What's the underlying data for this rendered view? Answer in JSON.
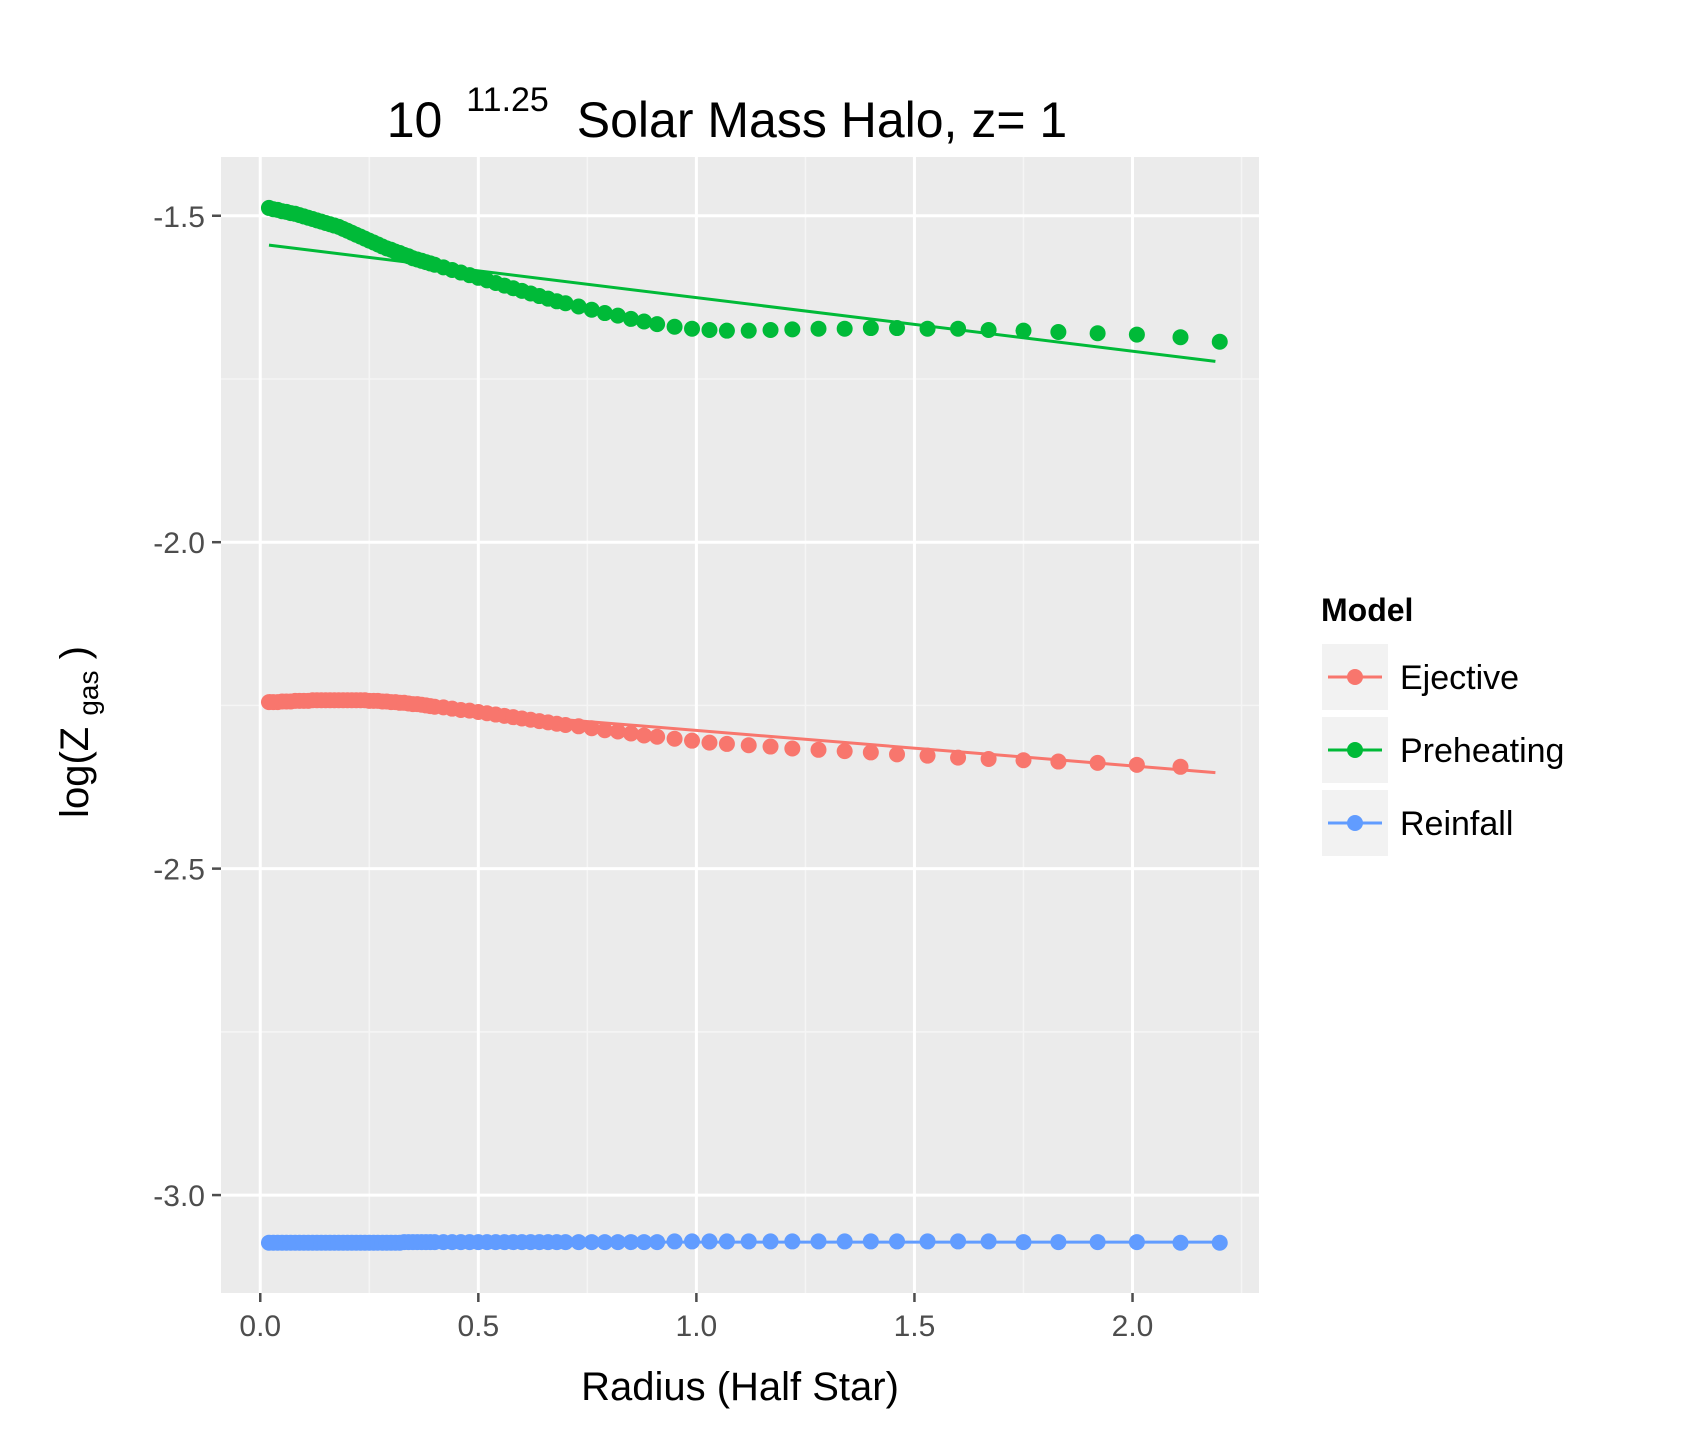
{
  "chart_data": {
    "type": "scatter",
    "title": {
      "base": "10",
      "exponent": "11.25",
      "rest": "Solar Mass Halo, z= 1"
    },
    "xlabel": "Radius (Half Star)",
    "ylabel": {
      "prefix": "log(Z",
      "subscript": "gas",
      "suffix": ")"
    },
    "xlim": [
      -0.09,
      2.29
    ],
    "ylim": [
      -3.15,
      -1.41
    ],
    "x_ticks": [
      0.0,
      0.5,
      1.0,
      1.5,
      2.0
    ],
    "x_tick_labels": [
      "0.0",
      "0.5",
      "1.0",
      "1.5",
      "2.0"
    ],
    "y_ticks": [
      -1.5,
      -2.0,
      -2.5,
      -3.0
    ],
    "y_tick_labels": [
      "-1.5",
      "-2.0",
      "-2.5",
      "-3.0"
    ],
    "grid": true,
    "legend": {
      "title": "Model",
      "position": "right"
    },
    "series": [
      {
        "name": "Ejective",
        "color": "#F8766D",
        "points": [
          [
            0.02,
            -2.245
          ],
          [
            0.03,
            -2.245
          ],
          [
            0.04,
            -2.245
          ],
          [
            0.05,
            -2.244
          ],
          [
            0.06,
            -2.244
          ],
          [
            0.07,
            -2.244
          ],
          [
            0.08,
            -2.243
          ],
          [
            0.09,
            -2.243
          ],
          [
            0.1,
            -2.243
          ],
          [
            0.11,
            -2.243
          ],
          [
            0.12,
            -2.242
          ],
          [
            0.13,
            -2.242
          ],
          [
            0.14,
            -2.242
          ],
          [
            0.15,
            -2.242
          ],
          [
            0.16,
            -2.242
          ],
          [
            0.17,
            -2.242
          ],
          [
            0.18,
            -2.242
          ],
          [
            0.19,
            -2.242
          ],
          [
            0.2,
            -2.242
          ],
          [
            0.21,
            -2.242
          ],
          [
            0.22,
            -2.242
          ],
          [
            0.23,
            -2.242
          ],
          [
            0.24,
            -2.242
          ],
          [
            0.25,
            -2.243
          ],
          [
            0.26,
            -2.243
          ],
          [
            0.27,
            -2.243
          ],
          [
            0.28,
            -2.244
          ],
          [
            0.29,
            -2.244
          ],
          [
            0.3,
            -2.245
          ],
          [
            0.31,
            -2.245
          ],
          [
            0.32,
            -2.246
          ],
          [
            0.33,
            -2.246
          ],
          [
            0.34,
            -2.247
          ],
          [
            0.35,
            -2.248
          ],
          [
            0.36,
            -2.248
          ],
          [
            0.37,
            -2.249
          ],
          [
            0.38,
            -2.25
          ],
          [
            0.39,
            -2.251
          ],
          [
            0.4,
            -2.252
          ],
          [
            0.42,
            -2.253
          ],
          [
            0.44,
            -2.255
          ],
          [
            0.46,
            -2.257
          ],
          [
            0.48,
            -2.258
          ],
          [
            0.5,
            -2.26
          ],
          [
            0.52,
            -2.262
          ],
          [
            0.54,
            -2.264
          ],
          [
            0.56,
            -2.266
          ],
          [
            0.58,
            -2.268
          ],
          [
            0.6,
            -2.27
          ],
          [
            0.62,
            -2.272
          ],
          [
            0.64,
            -2.274
          ],
          [
            0.66,
            -2.276
          ],
          [
            0.68,
            -2.278
          ],
          [
            0.7,
            -2.28
          ],
          [
            0.73,
            -2.282
          ],
          [
            0.76,
            -2.285
          ],
          [
            0.79,
            -2.288
          ],
          [
            0.82,
            -2.29
          ],
          [
            0.85,
            -2.293
          ],
          [
            0.88,
            -2.296
          ],
          [
            0.91,
            -2.298
          ],
          [
            0.95,
            -2.301
          ],
          [
            0.99,
            -2.304
          ],
          [
            1.03,
            -2.307
          ],
          [
            1.07,
            -2.309
          ],
          [
            1.12,
            -2.311
          ],
          [
            1.17,
            -2.313
          ],
          [
            1.22,
            -2.316
          ],
          [
            1.28,
            -2.318
          ],
          [
            1.34,
            -2.32
          ],
          [
            1.4,
            -2.322
          ],
          [
            1.46,
            -2.325
          ],
          [
            1.53,
            -2.327
          ],
          [
            1.6,
            -2.33
          ],
          [
            1.67,
            -2.332
          ],
          [
            1.75,
            -2.334
          ],
          [
            1.83,
            -2.336
          ],
          [
            1.92,
            -2.338
          ],
          [
            2.01,
            -2.341
          ],
          [
            2.11,
            -2.344
          ]
        ],
        "fit": [
          [
            0.02,
            -2.235
          ],
          [
            2.19,
            -2.353
          ]
        ]
      },
      {
        "name": "Preheating",
        "color": "#00BA38",
        "points": [
          [
            0.02,
            -1.488
          ],
          [
            0.03,
            -1.49
          ],
          [
            0.04,
            -1.491
          ],
          [
            0.05,
            -1.493
          ],
          [
            0.06,
            -1.494
          ],
          [
            0.07,
            -1.496
          ],
          [
            0.08,
            -1.497
          ],
          [
            0.09,
            -1.499
          ],
          [
            0.1,
            -1.501
          ],
          [
            0.11,
            -1.503
          ],
          [
            0.12,
            -1.505
          ],
          [
            0.13,
            -1.507
          ],
          [
            0.14,
            -1.509
          ],
          [
            0.15,
            -1.511
          ],
          [
            0.16,
            -1.513
          ],
          [
            0.17,
            -1.515
          ],
          [
            0.18,
            -1.517
          ],
          [
            0.19,
            -1.52
          ],
          [
            0.2,
            -1.523
          ],
          [
            0.21,
            -1.526
          ],
          [
            0.22,
            -1.529
          ],
          [
            0.23,
            -1.532
          ],
          [
            0.24,
            -1.535
          ],
          [
            0.25,
            -1.538
          ],
          [
            0.26,
            -1.541
          ],
          [
            0.27,
            -1.544
          ],
          [
            0.28,
            -1.547
          ],
          [
            0.29,
            -1.55
          ],
          [
            0.3,
            -1.552
          ],
          [
            0.31,
            -1.555
          ],
          [
            0.32,
            -1.557
          ],
          [
            0.33,
            -1.56
          ],
          [
            0.34,
            -1.562
          ],
          [
            0.35,
            -1.565
          ],
          [
            0.36,
            -1.567
          ],
          [
            0.37,
            -1.569
          ],
          [
            0.38,
            -1.571
          ],
          [
            0.39,
            -1.573
          ],
          [
            0.4,
            -1.575
          ],
          [
            0.42,
            -1.579
          ],
          [
            0.44,
            -1.583
          ],
          [
            0.46,
            -1.587
          ],
          [
            0.48,
            -1.591
          ],
          [
            0.5,
            -1.595
          ],
          [
            0.52,
            -1.599
          ],
          [
            0.54,
            -1.603
          ],
          [
            0.56,
            -1.607
          ],
          [
            0.58,
            -1.611
          ],
          [
            0.6,
            -1.615
          ],
          [
            0.62,
            -1.619
          ],
          [
            0.64,
            -1.623
          ],
          [
            0.66,
            -1.627
          ],
          [
            0.68,
            -1.631
          ],
          [
            0.7,
            -1.634
          ],
          [
            0.73,
            -1.639
          ],
          [
            0.76,
            -1.644
          ],
          [
            0.79,
            -1.649
          ],
          [
            0.82,
            -1.653
          ],
          [
            0.85,
            -1.658
          ],
          [
            0.88,
            -1.662
          ],
          [
            0.91,
            -1.666
          ],
          [
            0.95,
            -1.67
          ],
          [
            0.99,
            -1.673
          ],
          [
            1.03,
            -1.675
          ],
          [
            1.07,
            -1.676
          ],
          [
            1.12,
            -1.676
          ],
          [
            1.17,
            -1.675
          ],
          [
            1.22,
            -1.674
          ],
          [
            1.28,
            -1.673
          ],
          [
            1.34,
            -1.673
          ],
          [
            1.4,
            -1.672
          ],
          [
            1.46,
            -1.672
          ],
          [
            1.53,
            -1.673
          ],
          [
            1.6,
            -1.673
          ],
          [
            1.67,
            -1.675
          ],
          [
            1.75,
            -1.676
          ],
          [
            1.83,
            -1.678
          ],
          [
            1.92,
            -1.68
          ],
          [
            2.01,
            -1.682
          ],
          [
            2.11,
            -1.686
          ],
          [
            2.2,
            -1.693
          ]
        ],
        "fit": [
          [
            0.02,
            -1.545
          ],
          [
            2.19,
            -1.723
          ]
        ]
      },
      {
        "name": "Reinfall",
        "color": "#619CFF",
        "points": [
          [
            0.02,
            -3.073
          ],
          [
            0.03,
            -3.073
          ],
          [
            0.04,
            -3.073
          ],
          [
            0.05,
            -3.073
          ],
          [
            0.06,
            -3.073
          ],
          [
            0.07,
            -3.073
          ],
          [
            0.08,
            -3.073
          ],
          [
            0.09,
            -3.073
          ],
          [
            0.1,
            -3.073
          ],
          [
            0.11,
            -3.073
          ],
          [
            0.12,
            -3.073
          ],
          [
            0.13,
            -3.073
          ],
          [
            0.14,
            -3.073
          ],
          [
            0.15,
            -3.073
          ],
          [
            0.16,
            -3.073
          ],
          [
            0.17,
            -3.073
          ],
          [
            0.18,
            -3.073
          ],
          [
            0.19,
            -3.073
          ],
          [
            0.2,
            -3.073
          ],
          [
            0.21,
            -3.073
          ],
          [
            0.22,
            -3.073
          ],
          [
            0.23,
            -3.073
          ],
          [
            0.24,
            -3.073
          ],
          [
            0.25,
            -3.073
          ],
          [
            0.26,
            -3.073
          ],
          [
            0.27,
            -3.073
          ],
          [
            0.28,
            -3.073
          ],
          [
            0.29,
            -3.073
          ],
          [
            0.3,
            -3.073
          ],
          [
            0.31,
            -3.073
          ],
          [
            0.32,
            -3.073
          ],
          [
            0.33,
            -3.072
          ],
          [
            0.34,
            -3.072
          ],
          [
            0.35,
            -3.072
          ],
          [
            0.36,
            -3.072
          ],
          [
            0.37,
            -3.072
          ],
          [
            0.38,
            -3.072
          ],
          [
            0.39,
            -3.072
          ],
          [
            0.4,
            -3.072
          ],
          [
            0.42,
            -3.072
          ],
          [
            0.44,
            -3.072
          ],
          [
            0.46,
            -3.072
          ],
          [
            0.48,
            -3.072
          ],
          [
            0.5,
            -3.072
          ],
          [
            0.52,
            -3.072
          ],
          [
            0.54,
            -3.072
          ],
          [
            0.56,
            -3.072
          ],
          [
            0.58,
            -3.072
          ],
          [
            0.6,
            -3.072
          ],
          [
            0.62,
            -3.072
          ],
          [
            0.64,
            -3.072
          ],
          [
            0.66,
            -3.072
          ],
          [
            0.68,
            -3.072
          ],
          [
            0.7,
            -3.072
          ],
          [
            0.73,
            -3.072
          ],
          [
            0.76,
            -3.072
          ],
          [
            0.79,
            -3.072
          ],
          [
            0.82,
            -3.072
          ],
          [
            0.85,
            -3.072
          ],
          [
            0.88,
            -3.072
          ],
          [
            0.91,
            -3.072
          ],
          [
            0.95,
            -3.071
          ],
          [
            0.99,
            -3.071
          ],
          [
            1.03,
            -3.071
          ],
          [
            1.07,
            -3.071
          ],
          [
            1.12,
            -3.071
          ],
          [
            1.17,
            -3.071
          ],
          [
            1.22,
            -3.071
          ],
          [
            1.28,
            -3.071
          ],
          [
            1.34,
            -3.071
          ],
          [
            1.4,
            -3.071
          ],
          [
            1.46,
            -3.071
          ],
          [
            1.53,
            -3.071
          ],
          [
            1.6,
            -3.071
          ],
          [
            1.67,
            -3.071
          ],
          [
            1.75,
            -3.072
          ],
          [
            1.83,
            -3.072
          ],
          [
            1.92,
            -3.072
          ],
          [
            2.01,
            -3.072
          ],
          [
            2.11,
            -3.073
          ],
          [
            2.2,
            -3.073
          ]
        ],
        "fit": [
          [
            0.02,
            -3.072
          ],
          [
            2.19,
            -3.072
          ]
        ]
      }
    ]
  }
}
